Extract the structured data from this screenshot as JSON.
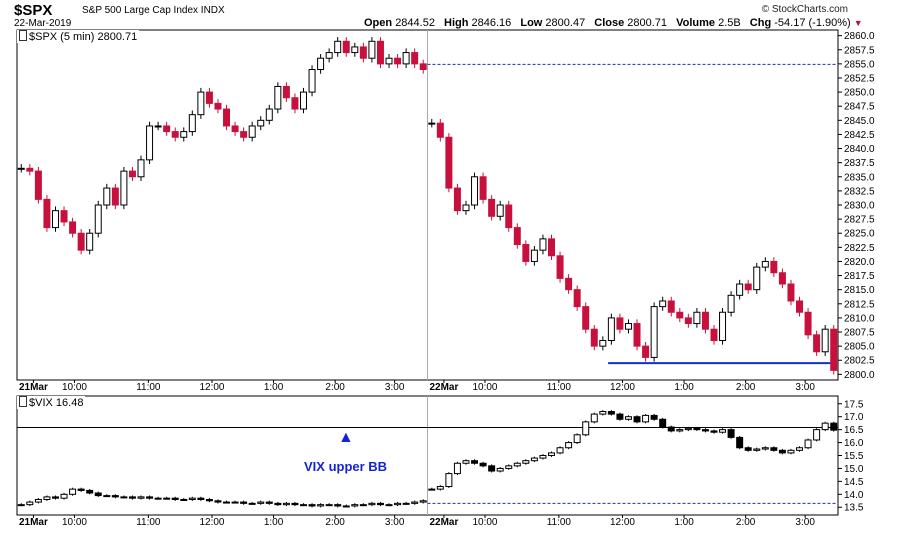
{
  "header": {
    "symbol": "$SPX",
    "name": "S&P 500 Large Cap Index",
    "exchange": "INDX",
    "date": "22-Mar-2019",
    "credit": "© StockCharts.com",
    "open_label": "Open",
    "open": "2844.52",
    "high_label": "High",
    "high": "2846.16",
    "low_label": "Low",
    "low": "2800.47",
    "close_label": "Close",
    "close": "2800.71",
    "volume_label": "Volume",
    "volume": "2.5B",
    "chg_label": "Chg",
    "chg": "-54.17 (-1.90%)"
  },
  "colors": {
    "up": "#000000",
    "down": "#c8103c",
    "guide": "#1230c8",
    "annotation": "#1523d6"
  },
  "chart_data": [
    {
      "type": "candlestick",
      "legend": "$SPX (5 min) 2800.71",
      "ylim": [
        2799,
        2861
      ],
      "yticks": [
        "2860.0",
        "2857.5",
        "2855.0",
        "2852.5",
        "2850.0",
        "2847.5",
        "2845.0",
        "2842.5",
        "2840.0",
        "2837.5",
        "2835.0",
        "2832.5",
        "2830.0",
        "2827.5",
        "2825.0",
        "2822.5",
        "2820.0",
        "2817.5",
        "2815.0",
        "2812.5",
        "2810.0",
        "2807.5",
        "2805.0",
        "2802.5",
        "2800.0"
      ],
      "xticks": [
        "21Mar",
        "10:00",
        "11:00",
        "12:00",
        "1:00",
        "2:00",
        "3:00",
        "22Mar",
        "10:00",
        "11:00",
        "12:00",
        "1:00",
        "2:00",
        "3:00"
      ],
      "reference_lines": [
        {
          "value": 2854.9,
          "style": "dashed",
          "span": "22Mar session"
        },
        {
          "value": 2802.0,
          "style": "solid",
          "span": "22Mar 12:00–3:55"
        }
      ],
      "sessions": [
        {
          "date": "21Mar",
          "open": 2836.5,
          "closes": [
            2836.5,
            2836,
            2831,
            2826,
            2829,
            2827,
            2825,
            2822,
            2825,
            2830,
            2833,
            2830,
            2836,
            2835,
            2838,
            2844,
            2844,
            2843,
            2842,
            2843,
            2846,
            2850,
            2848,
            2847,
            2844,
            2843,
            2842,
            2844,
            2845,
            2847,
            2851,
            2849,
            2847,
            2850,
            2854,
            2856,
            2857,
            2859,
            2857,
            2858,
            2856,
            2859,
            2855,
            2856,
            2855,
            2857,
            2855,
            2854
          ],
          "high": 2861,
          "low": 2818
        },
        {
          "date": "22Mar",
          "open": 2844.5,
          "closes": [
            2844.5,
            2842,
            2833,
            2829,
            2830,
            2835,
            2831,
            2828,
            2830,
            2826,
            2823,
            2820,
            2822,
            2824,
            2821,
            2817,
            2815,
            2812,
            2808,
            2805,
            2806,
            2810,
            2808,
            2809,
            2805,
            2803,
            2812,
            2813,
            2811,
            2810,
            2809,
            2811,
            2808,
            2806,
            2811,
            2814,
            2816,
            2815,
            2819,
            2820,
            2818,
            2816,
            2813,
            2811,
            2807,
            2804,
            2808,
            2800.71
          ],
          "high": 2846.16,
          "low": 2800.47
        }
      ]
    },
    {
      "type": "candlestick",
      "legend": "$VIX 16.48",
      "ylim": [
        13.2,
        17.8
      ],
      "yticks": [
        "17.5",
        "17.0",
        "16.5",
        "16.0",
        "15.5",
        "15.0",
        "14.5",
        "14.0",
        "13.5"
      ],
      "xticks": [
        "21Mar",
        "10:00",
        "11:00",
        "12:00",
        "1:00",
        "2:00",
        "3:00",
        "22Mar",
        "10:00",
        "11:00",
        "12:00",
        "1:00",
        "2:00",
        "3:00"
      ],
      "reference_lines": [
        {
          "value": 16.58,
          "style": "solid",
          "name": "VIX upper BB"
        },
        {
          "value": 13.65,
          "style": "dashed",
          "span": "22Mar session"
        }
      ],
      "annotation": "VIX upper BB",
      "sessions": [
        {
          "date": "21Mar",
          "closes": [
            13.6,
            13.7,
            13.8,
            13.9,
            13.85,
            14.0,
            14.2,
            14.15,
            14.05,
            13.95,
            13.95,
            13.9,
            13.9,
            13.85,
            13.9,
            13.85,
            13.85,
            13.85,
            13.8,
            13.8,
            13.85,
            13.8,
            13.75,
            13.7,
            13.7,
            13.7,
            13.65,
            13.65,
            13.7,
            13.65,
            13.6,
            13.65,
            13.6,
            13.6,
            13.55,
            13.6,
            13.6,
            13.55,
            13.55,
            13.6,
            13.6,
            13.65,
            13.6,
            13.6,
            13.65,
            13.65,
            13.7,
            13.75
          ]
        },
        {
          "date": "22Mar",
          "closes": [
            14.2,
            14.3,
            14.8,
            15.2,
            15.3,
            15.2,
            15.1,
            14.9,
            15.0,
            15.1,
            15.2,
            15.3,
            15.4,
            15.5,
            15.6,
            15.8,
            16.0,
            16.3,
            16.8,
            17.1,
            17.2,
            17.1,
            16.9,
            17.0,
            16.8,
            17.05,
            16.9,
            16.6,
            16.45,
            16.5,
            16.55,
            16.5,
            16.45,
            16.4,
            16.5,
            16.2,
            15.8,
            15.7,
            15.75,
            15.8,
            15.7,
            15.6,
            15.7,
            15.8,
            16.1,
            16.5,
            16.75,
            16.48
          ]
        }
      ]
    }
  ]
}
